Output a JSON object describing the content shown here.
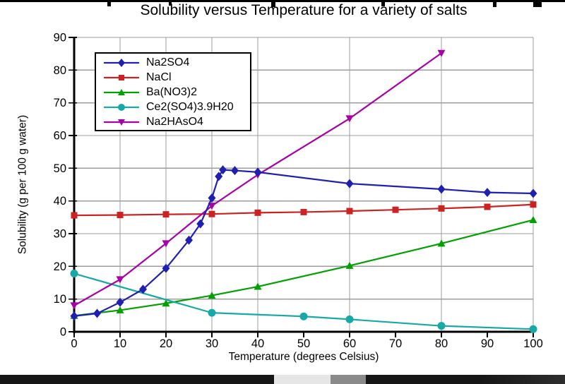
{
  "chart_data": {
    "type": "line",
    "title": "Solubility versus Temperature for a variety of salts",
    "xlabel": "Temperature (degrees Celsius)",
    "ylabel": "Solubility (g per 100 g water)",
    "xlim": [
      0,
      100
    ],
    "ylim": [
      0,
      90
    ],
    "x_ticks": [
      0,
      10,
      20,
      30,
      40,
      50,
      60,
      70,
      80,
      90,
      100
    ],
    "y_ticks": [
      0,
      10,
      20,
      30,
      40,
      50,
      60,
      70,
      80,
      90
    ],
    "grid": {
      "on": true,
      "color": "#9c9c9c",
      "vertical_lines_at": [
        10,
        20,
        30,
        40,
        60,
        80,
        100
      ],
      "horizontal_lines_at": [
        10,
        20,
        30,
        40,
        50,
        60,
        70,
        80,
        90
      ]
    },
    "legend_position": "top-left",
    "series": [
      {
        "name": "Na2SO4",
        "color": "#2020b0",
        "marker": "diamond",
        "points": [
          [
            0,
            4.8
          ],
          [
            5,
            5.6
          ],
          [
            10,
            9.0
          ],
          [
            15,
            13.0
          ],
          [
            20,
            19.4
          ],
          [
            25,
            28.0
          ],
          [
            27.5,
            33.0
          ],
          [
            30,
            40.9
          ],
          [
            31.5,
            47.5
          ],
          [
            32.4,
            49.5
          ],
          [
            35,
            49.3
          ],
          [
            40,
            48.8
          ],
          [
            60,
            45.3
          ],
          [
            80,
            43.6
          ],
          [
            90,
            42.6
          ],
          [
            100,
            42.3
          ]
        ]
      },
      {
        "name": "NaCl",
        "color": "#cc2222",
        "marker": "square",
        "points": [
          [
            0,
            35.6
          ],
          [
            10,
            35.7
          ],
          [
            20,
            35.9
          ],
          [
            30,
            36.0
          ],
          [
            40,
            36.4
          ],
          [
            50,
            36.6
          ],
          [
            60,
            36.9
          ],
          [
            70,
            37.3
          ],
          [
            80,
            37.7
          ],
          [
            90,
            38.2
          ],
          [
            100,
            38.9
          ]
        ]
      },
      {
        "name": "Ba(NO3)2",
        "color": "#00a000",
        "marker": "triangle-up",
        "points": [
          [
            0,
            4.9
          ],
          [
            10,
            6.6
          ],
          [
            20,
            8.7
          ],
          [
            30,
            11.1
          ],
          [
            40,
            13.8
          ],
          [
            60,
            20.2
          ],
          [
            80,
            27.0
          ],
          [
            100,
            34.2
          ]
        ]
      },
      {
        "name": "Ce2(SO4)3.9H20",
        "color": "#18a8a8",
        "marker": "circle",
        "points": [
          [
            0,
            17.8
          ],
          [
            30,
            5.8
          ],
          [
            50,
            4.7
          ],
          [
            60,
            3.8
          ],
          [
            80,
            1.8
          ],
          [
            100,
            0.8
          ]
        ]
      },
      {
        "name": "Na2HAsO4",
        "color": "#a800a8",
        "marker": "triangle-down",
        "points": [
          [
            0,
            8.0
          ],
          [
            10,
            16.0
          ],
          [
            20,
            27.0
          ],
          [
            30,
            38.5
          ],
          [
            40,
            48.0
          ],
          [
            60,
            65.2
          ],
          [
            80,
            85.2
          ]
        ]
      }
    ],
    "draw_order": [
      2,
      3,
      1,
      4,
      0
    ],
    "axis_color": "#000000"
  }
}
